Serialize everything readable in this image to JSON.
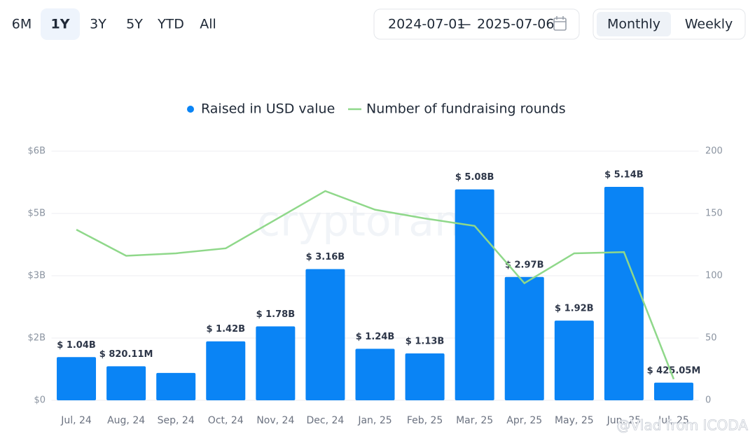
{
  "ui": {
    "ranges": [
      "6M",
      "1Y",
      "3Y",
      "5Y",
      "YTD",
      "All"
    ],
    "active_range": "1Y",
    "date_start": "2024-07-01",
    "date_separator": "—",
    "date_end": "2025-07-06",
    "views": [
      "Monthly",
      "Weekly"
    ],
    "active_view": "Monthly",
    "watermark": "cryptorank",
    "overlay_text": "@Vlad from ICODA"
  },
  "chart_data": {
    "type": "bar",
    "categories": [
      "Jul, 24",
      "Aug, 24",
      "Sep, 24",
      "Oct, 24",
      "Nov, 24",
      "Dec, 24",
      "Jan, 25",
      "Feb, 25",
      "Mar, 25",
      "Apr, 25",
      "May, 25",
      "Jun, 25",
      "Jul, 25"
    ],
    "series": [
      {
        "name": "Raised in USD value",
        "color": "#0a84f5",
        "type": "bar",
        "values": [
          1.04,
          0.82011,
          0.66,
          1.42,
          1.78,
          3.16,
          1.24,
          1.13,
          5.08,
          2.97,
          1.92,
          5.14,
          0.42505
        ],
        "value_labels": [
          "$ 1.04B",
          "$ 820.11M",
          null,
          "$ 1.42B",
          "$ 1.78B",
          "$ 3.16B",
          "$ 1.24B",
          "$ 1.13B",
          "$ 5.08B",
          "$ 2.97B",
          "$ 1.92B",
          "$ 5.14B",
          "$ 425.05M"
        ]
      },
      {
        "name": "Number of fundraising rounds",
        "color": "#8fd88a",
        "type": "line",
        "axis": "y2",
        "values": [
          137,
          116,
          118,
          122,
          145,
          168,
          153,
          146,
          140,
          94,
          118,
          119,
          17
        ]
      }
    ],
    "ylim": [
      0,
      6
    ],
    "yticks": [
      {
        "value": 0,
        "label": "$0"
      },
      {
        "value": 1.5,
        "label": "$2B"
      },
      {
        "value": 3,
        "label": "$3B"
      },
      {
        "value": 4.5,
        "label": "$5B"
      },
      {
        "value": 6,
        "label": "$6B"
      }
    ],
    "y2lim": [
      0,
      200
    ],
    "y2ticks": [
      0,
      50,
      100,
      150,
      200
    ],
    "grid": true,
    "legend": "top"
  }
}
